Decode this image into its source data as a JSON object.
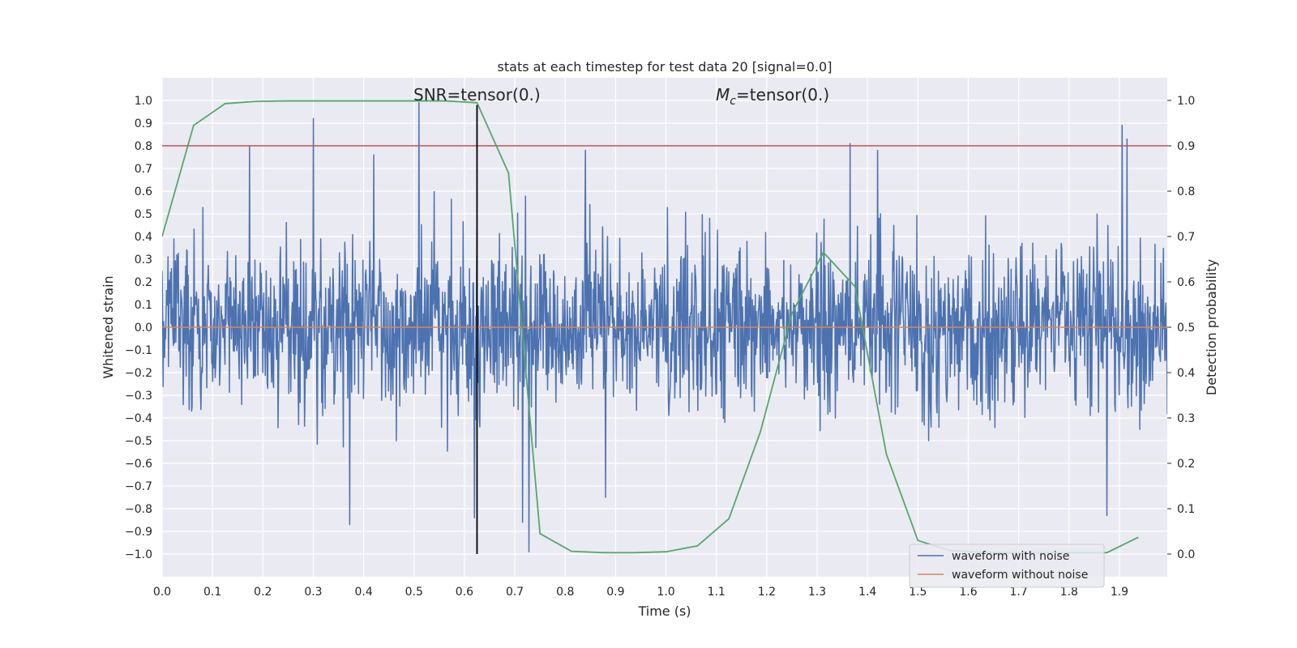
{
  "chart_data": {
    "type": "line",
    "title": "stats at each timestep for test data 20 [signal=0.0]",
    "xlabel": "Time (s)",
    "ylabel": "Whitened strain",
    "y2label": "Detection probability",
    "xlim": [
      0.0,
      1.995
    ],
    "ylim": [
      -1.1,
      1.1
    ],
    "y2lim": [
      -0.05,
      1.05
    ],
    "xticks": [
      "0.0",
      "0.1",
      "0.2",
      "0.3",
      "0.4",
      "0.5",
      "0.6",
      "0.7",
      "0.8",
      "0.9",
      "1.0",
      "1.1",
      "1.2",
      "1.3",
      "1.4",
      "1.5",
      "1.6",
      "1.7",
      "1.8",
      "1.9"
    ],
    "yticks": [
      "1.0",
      "0.9",
      "0.8",
      "0.7",
      "0.6",
      "0.5",
      "0.4",
      "0.3",
      "0.2",
      "0.1",
      "0.0",
      "−0.1",
      "−0.2",
      "−0.3",
      "−0.4",
      "−0.5",
      "−0.6",
      "−0.7",
      "−0.8",
      "−0.9",
      "−1.0"
    ],
    "y2ticks": [
      "1.0",
      "0.9",
      "0.8",
      "0.7",
      "0.6",
      "0.5",
      "0.4",
      "0.3",
      "0.2",
      "0.1",
      "0.0"
    ],
    "grid": true,
    "legend_position": "lower-right",
    "annotations": {
      "snr": "SNR=tensor(0.)",
      "mc_symbol": "M",
      "mc_sub": "c",
      "mc_rest": "=tensor(0.)"
    },
    "threshold": {
      "y2": 0.9,
      "color": "#c44e52"
    },
    "marker_line": {
      "x": 0.625,
      "y_from": -1.0,
      "y_to": 0.98,
      "color": "#000000"
    },
    "series": [
      {
        "name": "waveform with noise",
        "color": "#4c72b0",
        "kind": "noise",
        "n_samples": 2048,
        "x_range": [
          0.0,
          1.995
        ],
        "y_range": [
          -1.0,
          1.0
        ],
        "peaks": [
          {
            "x": 0.173,
            "y": 0.8
          },
          {
            "x": 0.3,
            "y": 0.92
          },
          {
            "x": 0.372,
            "y": -0.87
          },
          {
            "x": 0.42,
            "y": 0.76
          },
          {
            "x": 0.51,
            "y": 0.99
          },
          {
            "x": 0.62,
            "y": -0.84
          },
          {
            "x": 0.728,
            "y": -0.99
          },
          {
            "x": 0.715,
            "y": -0.86
          },
          {
            "x": 0.84,
            "y": 0.78
          },
          {
            "x": 0.88,
            "y": -0.75
          },
          {
            "x": 1.365,
            "y": 0.81
          },
          {
            "x": 1.42,
            "y": 0.78
          },
          {
            "x": 1.875,
            "y": -0.83
          },
          {
            "x": 1.905,
            "y": 0.89
          },
          {
            "x": 1.915,
            "y": 0.83
          }
        ]
      },
      {
        "name": "waveform without noise",
        "color": "#dd8452",
        "kind": "flat",
        "x": [
          0.0,
          1.995
        ],
        "y": [
          0.0,
          0.0
        ]
      },
      {
        "name": "",
        "color": "#55a868",
        "kind": "prob",
        "x": [
          0.0,
          0.0625,
          0.125,
          0.1875,
          0.25,
          0.3125,
          0.375,
          0.4375,
          0.5,
          0.5625,
          0.625,
          0.6875,
          0.75,
          0.8125,
          0.875,
          0.9375,
          1.0,
          1.0625,
          1.125,
          1.1875,
          1.25,
          1.3125,
          1.375,
          1.4375,
          1.5,
          1.5625,
          1.625,
          1.6875,
          1.75,
          1.8125,
          1.875,
          1.9375
        ],
        "y": [
          0.7,
          0.945,
          0.993,
          0.998,
          0.999,
          0.999,
          0.999,
          0.999,
          0.999,
          0.999,
          0.995,
          0.84,
          0.045,
          0.006,
          0.003,
          0.003,
          0.005,
          0.018,
          0.078,
          0.27,
          0.53,
          0.665,
          0.59,
          0.22,
          0.03,
          0.008,
          0.004,
          0.003,
          0.003,
          0.003,
          0.003,
          0.037
        ]
      }
    ]
  }
}
